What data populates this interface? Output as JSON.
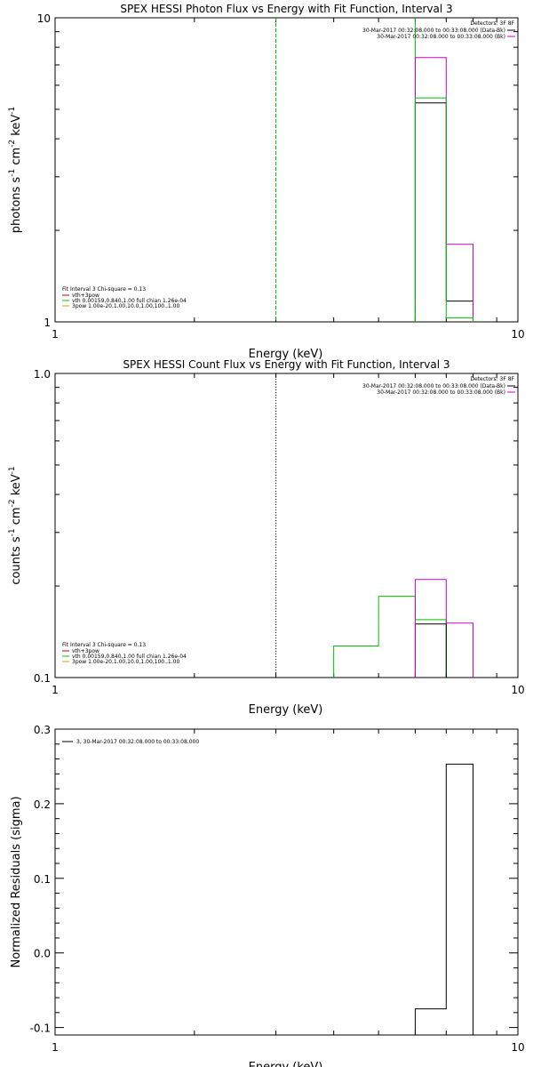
{
  "chart_data": [
    {
      "type": "line",
      "title": "SPEX HESSI Photon Flux vs Energy with Fit Function, Interval 3",
      "xlabel": "Energy (keV)",
      "ylabel_main": "photons s",
      "ylabel_exp1": "-1",
      "ylabel_mid": " cm",
      "ylabel_exp2": "-2",
      "ylabel_end": " keV",
      "ylabel_exp3": "-1",
      "x_scale": "log",
      "y_scale": "log",
      "xlim": [
        1,
        10
      ],
      "ylim": [
        1,
        10
      ],
      "x_tick_labels": [
        {
          "value": 1,
          "label": "1"
        },
        {
          "value": 10,
          "label": "10"
        }
      ],
      "y_tick_labels": [
        {
          "value": 1,
          "label": "1"
        },
        {
          "value": 10,
          "label": "10"
        }
      ],
      "vlines": [
        {
          "x": 3.0,
          "color": "#00c000",
          "style": "dashed"
        },
        {
          "x": 6.0,
          "color": "#00c000",
          "style": "solid"
        }
      ],
      "legend_topright": {
        "title": "Detectors: 3F 8F",
        "entries": [
          {
            "text": "30-Mar-2017 00:32:08.000 to 00:33:08.000 (Data-Bk)",
            "color": "#000000"
          },
          {
            "text": "30-Mar-2017 00:32:08.000 to 00:33:08.000 (Bk)",
            "color": "#cc00cc"
          }
        ]
      },
      "legend_bottomleft": {
        "title": "Fit Interval 3   Chi-square = 0.13",
        "entries": [
          {
            "text": "vth+3pow",
            "color": "#cc0000"
          },
          {
            "text": "vth 0.00159,0.840,1.00  full chian 1.26e-04",
            "color": "#00c000"
          },
          {
            "text": "3pow 1.00e-20,1.00,10.0,1.00,100.,1.00",
            "color": "#e0a000"
          }
        ]
      },
      "series": [
        {
          "color": "#000000",
          "edges": [
            6.0,
            7.0,
            8.0
          ],
          "values": [
            5.25,
            1.17
          ]
        },
        {
          "color": "#cc00cc",
          "edges": [
            6.0,
            7.0,
            8.0
          ],
          "values": [
            7.4,
            1.8
          ]
        },
        {
          "color": "#00c000",
          "edges": [
            6.0,
            7.0,
            8.0
          ],
          "values": [
            5.45,
            1.03
          ]
        }
      ]
    },
    {
      "type": "line",
      "title": "SPEX HESSI Count Flux vs Energy with Fit Function, Interval 3",
      "xlabel": "Energy (keV)",
      "ylabel_main": "counts s",
      "ylabel_exp1": "-1",
      "ylabel_mid": " cm",
      "ylabel_exp2": "-2",
      "ylabel_end": " keV",
      "ylabel_exp3": "-1",
      "x_scale": "log",
      "y_scale": "log",
      "xlim": [
        1,
        10
      ],
      "ylim": [
        0.1,
        1.0
      ],
      "x_tick_labels": [
        {
          "value": 1,
          "label": "1"
        },
        {
          "value": 10,
          "label": "10"
        }
      ],
      "y_tick_labels": [
        {
          "value": 0.1,
          "label": "0.1"
        },
        {
          "value": 1.0,
          "label": "1.0"
        }
      ],
      "vlines": [
        {
          "x": 3.0,
          "color": "#000000",
          "style": "dotted"
        }
      ],
      "legend_topright": {
        "title": "Detectors: 3F 8F",
        "entries": [
          {
            "text": "30-Mar-2017 00:32:08.000 to 00:33:08.000 (Data-Bk)",
            "color": "#000000"
          },
          {
            "text": "30-Mar-2017 00:32:08.000 to 00:33:08.000 (Bk)",
            "color": "#cc00cc"
          }
        ]
      },
      "legend_bottomleft": {
        "title": "Fit Interval 3   Chi-square = 0.13",
        "entries": [
          {
            "text": "vth+3pow",
            "color": "#cc0000"
          },
          {
            "text": "vth 0.00159,0.840,1.00  full chian 1.26e-04",
            "color": "#00c000"
          },
          {
            "text": "3pow 1.00e-20,1.00,10.0,1.00,100.,1.00",
            "color": "#e0a000"
          }
        ]
      },
      "series": [
        {
          "color": "#00c000",
          "edges": [
            4.0,
            5.0,
            6.0,
            7.0,
            8.0
          ],
          "values": [
            0.127,
            0.185,
            0.155,
            0.1
          ]
        },
        {
          "color": "#000000",
          "edges": [
            6.0,
            7.0,
            8.0
          ],
          "values": [
            0.15,
            0.1
          ]
        },
        {
          "color": "#cc00cc",
          "edges": [
            6.0,
            7.0,
            8.0
          ],
          "values": [
            0.21,
            0.151
          ]
        }
      ]
    },
    {
      "type": "line",
      "title": "",
      "xlabel": "Energy (keV)",
      "ylabel_main": "Normalized Residuals (sigma)",
      "x_scale": "log",
      "y_scale": "linear",
      "xlim": [
        1,
        10
      ],
      "ylim": [
        -0.11,
        0.3
      ],
      "x_tick_labels": [
        {
          "value": 1,
          "label": "1"
        },
        {
          "value": 10,
          "label": "10"
        }
      ],
      "y_tick_labels": [
        {
          "value": -0.1,
          "label": "-0.1"
        },
        {
          "value": 0.0,
          "label": "0.0"
        },
        {
          "value": 0.1,
          "label": "0.1"
        },
        {
          "value": 0.2,
          "label": "0.2"
        },
        {
          "value": 0.3,
          "label": "0.3"
        }
      ],
      "legend_topleft": {
        "entries": [
          {
            "text": "3, 30-Mar-2017 00:32:08.000 to 00:33:08.000",
            "color": "#000000"
          }
        ]
      },
      "series": [
        {
          "color": "#000000",
          "edges": [
            6.0,
            7.0,
            8.0
          ],
          "values": [
            -0.075,
            0.253
          ]
        }
      ]
    }
  ]
}
